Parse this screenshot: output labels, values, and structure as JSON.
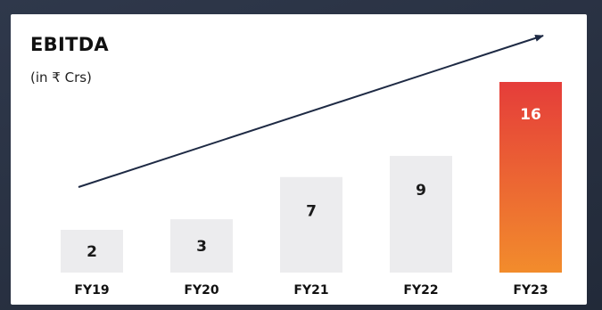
{
  "chart_data": {
    "type": "bar",
    "title": "EBITDA",
    "subtitle": "(in ₹ Crs)",
    "categories": [
      "FY19",
      "FY20",
      "FY21",
      "FY22",
      "FY23"
    ],
    "values": [
      2,
      3,
      7,
      9,
      16
    ],
    "data_labels": [
      "2",
      "3",
      "7",
      "9",
      "16"
    ],
    "highlight_category": "FY23",
    "trend_arrow": true,
    "ylim": [
      0,
      16
    ],
    "grid": false,
    "legend": "none",
    "colors": {
      "bar": "#ececee",
      "highlight_top": "#e53d3a",
      "highlight_bottom": "#f28c2c",
      "label": "#1a1a1a",
      "highlight_label": "#ffffff",
      "arrow": "#1e2a44"
    }
  }
}
